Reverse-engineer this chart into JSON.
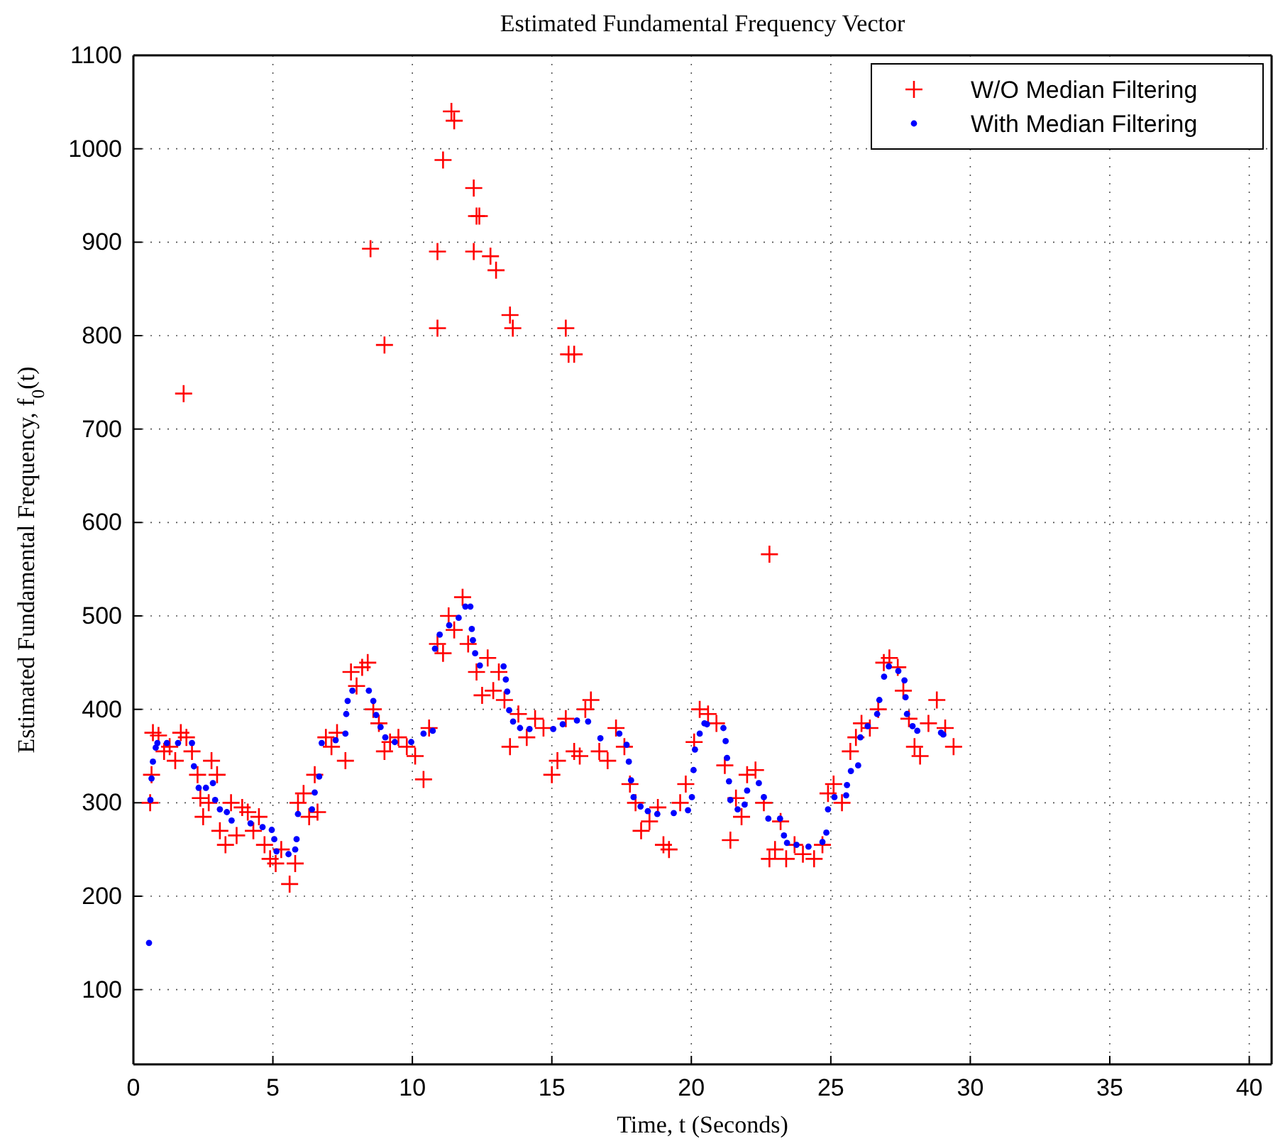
{
  "chart_data": {
    "type": "scatter",
    "title": "Estimated Fundamental Frequency Vector",
    "xlabel": "Time, t (Seconds)",
    "ylabel": "Estimated Fundamental Frequency, f$_{0}$(t)",
    "xlim": [
      0,
      40.8
    ],
    "ylim": [
      20,
      1100
    ],
    "xticks": [
      0,
      5,
      10,
      15,
      20,
      25,
      30,
      35,
      40
    ],
    "yticks": [
      100,
      200,
      300,
      400,
      500,
      600,
      700,
      800,
      900,
      1000,
      1100
    ],
    "grid": true,
    "legend": "top right",
    "series": [
      {
        "name": "W/O Median Filtering",
        "color": "#ff0000",
        "marker": "cross",
        "x": [
          0.6,
          0.65,
          0.7,
          0.9,
          1.1,
          1.3,
          1.5,
          1.7,
          1.9,
          2.1,
          2.3,
          2.4,
          2.5,
          2.7,
          2.8,
          3.0,
          3.1,
          3.3,
          3.5,
          3.7,
          3.9,
          4.1,
          4.3,
          4.5,
          4.7,
          4.9,
          5.1,
          5.3,
          5.6,
          5.8,
          5.9,
          6.1,
          6.3,
          6.5,
          6.6,
          6.9,
          7.1,
          7.3,
          7.6,
          7.8,
          8.0,
          8.2,
          8.4,
          8.6,
          8.8,
          9.0,
          9.2,
          9.5,
          9.8,
          10.1,
          10.4,
          10.6,
          10.9,
          11.1,
          11.3,
          11.5,
          11.8,
          12.0,
          12.3,
          12.5,
          12.7,
          12.9,
          13.1,
          13.3,
          13.5,
          13.8,
          14.1,
          14.4,
          14.7,
          15.0,
          15.2,
          15.5,
          15.8,
          16.0,
          16.2,
          16.4,
          16.7,
          17.0,
          17.3,
          17.6,
          17.8,
          18.0,
          18.2,
          18.5,
          18.8,
          19.0,
          19.2,
          19.6,
          19.8,
          20.1,
          20.3,
          20.6,
          20.9,
          21.2,
          21.4,
          21.6,
          21.8,
          22.0,
          22.3,
          22.6,
          22.8,
          23.0,
          23.2,
          23.4,
          23.7,
          24.0,
          24.4,
          24.7,
          24.9,
          25.1,
          25.4,
          25.7,
          25.9,
          26.1,
          26.4,
          26.7,
          26.9,
          27.1,
          27.4,
          27.6,
          27.8,
          28.0,
          28.2,
          28.5,
          28.8,
          29.1,
          29.4,
          1.8,
          8.5,
          9.0,
          10.9,
          10.9,
          11.1,
          11.4,
          11.5,
          12.2,
          12.3,
          12.4,
          12.2,
          12.8,
          13.0,
          13.5,
          13.6,
          15.5,
          15.6,
          15.8,
          22.8
        ],
        "values": [
          300,
          330,
          375,
          372,
          355,
          360,
          345,
          375,
          370,
          355,
          330,
          305,
          285,
          300,
          345,
          330,
          270,
          255,
          300,
          265,
          295,
          290,
          270,
          285,
          255,
          240,
          235,
          250,
          213,
          235,
          300,
          310,
          285,
          330,
          290,
          370,
          360,
          375,
          345,
          440,
          425,
          445,
          450,
          400,
          385,
          355,
          365,
          370,
          360,
          350,
          325,
          380,
          470,
          460,
          500,
          485,
          520,
          470,
          440,
          415,
          455,
          420,
          440,
          410,
          360,
          395,
          370,
          390,
          380,
          330,
          345,
          390,
          355,
          350,
          400,
          410,
          355,
          345,
          380,
          360,
          320,
          300,
          270,
          280,
          295,
          255,
          250,
          300,
          320,
          365,
          400,
          395,
          385,
          340,
          260,
          305,
          285,
          330,
          335,
          300,
          240,
          250,
          280,
          240,
          255,
          245,
          240,
          255,
          310,
          320,
          300,
          355,
          370,
          385,
          380,
          400,
          450,
          455,
          445,
          420,
          390,
          360,
          350,
          385,
          410,
          380,
          360,
          738,
          893,
          790,
          890,
          808,
          988,
          1040,
          1030,
          958,
          928,
          928,
          890,
          885,
          870,
          822,
          808,
          808,
          780,
          780,
          566
        ]
      },
      {
        "name": "With Median Filtering",
        "color": "#0000ff",
        "marker": "circle",
        "x": [
          0.56,
          0.61,
          0.65,
          0.7,
          0.8,
          0.86,
          1.2,
          1.6,
          2.1,
          2.17,
          2.34,
          2.6,
          2.85,
          2.93,
          3.1,
          3.35,
          3.52,
          4.2,
          4.63,
          4.96,
          5.05,
          5.13,
          5.56,
          5.8,
          5.85,
          5.9,
          6.4,
          6.5,
          6.66,
          6.75,
          7.25,
          7.6,
          7.63,
          7.68,
          7.85,
          8.44,
          8.6,
          8.7,
          8.86,
          9.03,
          9.37,
          9.96,
          10.4,
          10.73,
          10.81,
          10.98,
          11.32,
          11.66,
          11.9,
          12.08,
          12.13,
          12.17,
          12.25,
          12.42,
          13.27,
          13.35,
          13.4,
          13.47,
          13.61,
          13.86,
          14.2,
          15.05,
          15.39,
          15.9,
          16.3,
          16.74,
          17.42,
          17.68,
          17.76,
          17.84,
          17.93,
          18.18,
          18.44,
          18.78,
          19.37,
          19.88,
          20.02,
          20.08,
          20.13,
          20.3,
          20.47,
          20.56,
          21.15,
          21.23,
          21.28,
          21.35,
          21.4,
          21.66,
          21.91,
          22.0,
          22.42,
          22.6,
          22.76,
          23.18,
          23.32,
          23.43,
          23.77,
          24.2,
          24.7,
          24.84,
          24.9,
          25.13,
          25.55,
          25.58,
          25.72,
          25.98,
          26.06,
          26.32,
          26.66,
          26.74,
          26.91,
          27.08,
          27.42,
          27.64,
          27.68,
          27.73,
          27.93,
          28.1,
          28.95,
          29.03
        ],
        "values": [
          150,
          303,
          326,
          344,
          359,
          364,
          364,
          364,
          364,
          339,
          316,
          316,
          321,
          303,
          293,
          290,
          281,
          278,
          274,
          271,
          261,
          248,
          245,
          250,
          261,
          288,
          293,
          311,
          328,
          364,
          367,
          374,
          395,
          409,
          420,
          420,
          409,
          394,
          381,
          370,
          365,
          365,
          374,
          377,
          465,
          480,
          490,
          498,
          510,
          510,
          486,
          474,
          460,
          447,
          446,
          432,
          419,
          399,
          387,
          380,
          379,
          379,
          384,
          388,
          387,
          369,
          374,
          362,
          344,
          324,
          306,
          296,
          291,
          288,
          289,
          292,
          306,
          335,
          357,
          374,
          385,
          384,
          380,
          366,
          348,
          323,
          303,
          293,
          298,
          313,
          321,
          306,
          283,
          283,
          265,
          257,
          255,
          253,
          258,
          268,
          293,
          306,
          308,
          319,
          334,
          340,
          370,
          382,
          395,
          410,
          435,
          446,
          441,
          431,
          413,
          395,
          382,
          377,
          375,
          373
        ]
      }
    ]
  }
}
